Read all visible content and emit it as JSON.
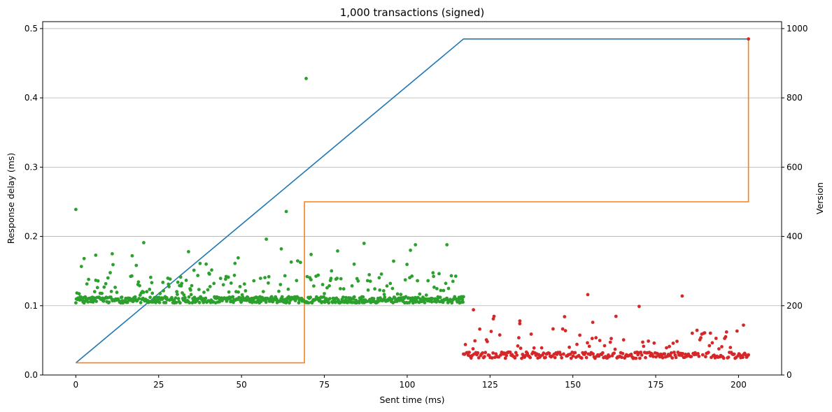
{
  "chart_data": {
    "type": "scatter",
    "title": "1,000 transactions (signed)",
    "xlabel": "Sent time (ms)",
    "ylabel": "Response delay (ms)",
    "y2label": "Version",
    "xlim": [
      -10,
      213
    ],
    "ylim": [
      0,
      0.51
    ],
    "y2lim": [
      0,
      1020
    ],
    "xticks": [
      0,
      25,
      50,
      75,
      100,
      125,
      150,
      175,
      200
    ],
    "yticks": [
      0.0,
      0.1,
      0.2,
      0.3,
      0.4,
      0.5
    ],
    "y2ticks": [
      0,
      200,
      400,
      600,
      800,
      1000
    ],
    "grid": "horizontal on right axis",
    "series_colors": {
      "blue": "#1f77b4",
      "orange": "#ff7f0e",
      "green": "#2ca02c",
      "red": "#d62728"
    },
    "series": [
      {
        "axis": "right",
        "kind": "line",
        "color": "#1f77b4",
        "x": [
          0,
          117,
          203
        ],
        "y": [
          35,
          970,
          970
        ]
      },
      {
        "axis": "right",
        "kind": "step",
        "color": "#ff7f0e",
        "x": [
          0,
          69,
          69,
          203,
          203
        ],
        "y": [
          35,
          35,
          500,
          500,
          970
        ]
      },
      {
        "axis": "left",
        "kind": "scatter",
        "color": "#2ca02c",
        "x_range": [
          0,
          117
        ],
        "count": 700,
        "base": 0.11,
        "outliers": [
          [
            0,
            0.239
          ],
          [
            69.5,
            0.428
          ],
          [
            63.5,
            0.236
          ],
          [
            20.5,
            0.191
          ],
          [
            57.5,
            0.196
          ],
          [
            87,
            0.19
          ],
          [
            102.5,
            0.188
          ],
          [
            112,
            0.188
          ],
          [
            34,
            0.178
          ],
          [
            79,
            0.179
          ],
          [
            49,
            0.169
          ],
          [
            62,
            0.182
          ],
          [
            65,
            0.163
          ],
          [
            71,
            0.174
          ],
          [
            2.5,
            0.168
          ],
          [
            6,
            0.173
          ],
          [
            11,
            0.175
          ],
          [
            37.5,
            0.161
          ],
          [
            84,
            0.16
          ],
          [
            17,
            0.172
          ],
          [
            101,
            0.18
          ]
        ]
      },
      {
        "axis": "left",
        "kind": "scatter",
        "color": "#d62728",
        "x_range": [
          117,
          203
        ],
        "count": 300,
        "base": 0.03,
        "outliers": [
          [
            203,
            0.485
          ],
          [
            154.5,
            0.116
          ],
          [
            183,
            0.114
          ],
          [
            170,
            0.099
          ],
          [
            120,
            0.094
          ],
          [
            126,
            0.081
          ],
          [
            134,
            0.078
          ],
          [
            156,
            0.076
          ],
          [
            201.5,
            0.072
          ]
        ]
      }
    ]
  }
}
